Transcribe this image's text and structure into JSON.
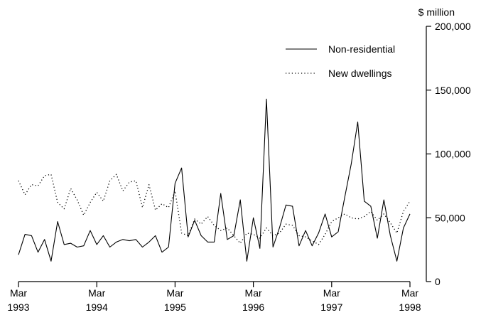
{
  "chart_data": {
    "type": "line",
    "ylabel": "$ million",
    "ylim": [
      0,
      200000
    ],
    "y_ticks": [
      {
        "value": 0,
        "label": "0"
      },
      {
        "value": 50000,
        "label": "50,000"
      },
      {
        "value": 100000,
        "label": "100,000"
      },
      {
        "value": 150000,
        "label": "150,000"
      },
      {
        "value": 200000,
        "label": "200,000"
      }
    ],
    "x_range": [
      "1993-03",
      "1998-03"
    ],
    "x_ticks": [
      {
        "month": "Mar",
        "year": "1993",
        "date": "1993-03"
      },
      {
        "month": "Mar",
        "year": "1994",
        "date": "1994-03"
      },
      {
        "month": "Mar",
        "year": "1995",
        "date": "1995-03"
      },
      {
        "month": "Mar",
        "year": "1996",
        "date": "1996-03"
      },
      {
        "month": "Mar",
        "year": "1997",
        "date": "1997-03"
      },
      {
        "month": "Mar",
        "year": "1998",
        "date": "1998-03"
      }
    ],
    "legend_position": "top-right",
    "grid": false,
    "x": [
      "1993-03",
      "1993-04",
      "1993-05",
      "1993-06",
      "1993-07",
      "1993-08",
      "1993-09",
      "1993-10",
      "1993-11",
      "1993-12",
      "1994-01",
      "1994-02",
      "1994-03",
      "1994-04",
      "1994-05",
      "1994-06",
      "1994-07",
      "1994-08",
      "1994-09",
      "1994-10",
      "1994-11",
      "1994-12",
      "1995-01",
      "1995-02",
      "1995-03",
      "1995-04",
      "1995-05",
      "1995-06",
      "1995-07",
      "1995-08",
      "1995-09",
      "1995-10",
      "1995-11",
      "1995-12",
      "1996-01",
      "1996-02",
      "1996-03",
      "1996-04",
      "1996-05",
      "1996-06",
      "1996-07",
      "1996-08",
      "1996-09",
      "1996-10",
      "1996-11",
      "1996-12",
      "1997-01",
      "1997-02",
      "1997-03",
      "1997-04",
      "1997-05",
      "1997-06",
      "1997-07",
      "1997-08",
      "1997-09",
      "1997-10",
      "1997-11",
      "1997-12",
      "1998-01",
      "1998-02",
      "1998-03"
    ],
    "series": [
      {
        "name": "Non-residential",
        "style": "solid",
        "values": [
          21000,
          37000,
          36000,
          23000,
          33000,
          16000,
          47000,
          29000,
          30000,
          27000,
          28000,
          40000,
          29000,
          36000,
          27000,
          31000,
          33000,
          32000,
          33000,
          27000,
          31000,
          36000,
          23000,
          27000,
          77000,
          89000,
          35000,
          48000,
          36000,
          31000,
          31000,
          69000,
          33000,
          36000,
          64000,
          16000,
          50000,
          26000,
          143000,
          27000,
          42000,
          60000,
          59000,
          28000,
          40000,
          28000,
          38000,
          53000,
          35000,
          39000,
          66000,
          92000,
          125000,
          63000,
          59000,
          34000,
          64000,
          36000,
          16000,
          42000,
          53000
        ]
      },
      {
        "name": "New dwellings",
        "style": "dotted",
        "values": [
          79000,
          68000,
          76000,
          75000,
          83000,
          84000,
          62000,
          57000,
          73000,
          64000,
          52000,
          62000,
          70000,
          63000,
          79000,
          84000,
          71000,
          78000,
          79000,
          58000,
          76000,
          56000,
          61000,
          58000,
          71000,
          38000,
          36000,
          49000,
          45000,
          51000,
          44000,
          40000,
          42000,
          36000,
          30000,
          38000,
          37000,
          34000,
          42000,
          36000,
          38000,
          45000,
          44000,
          36000,
          35000,
          32000,
          29000,
          37000,
          47000,
          50000,
          53000,
          50000,
          49000,
          51000,
          55000,
          48000,
          53000,
          46000,
          38000,
          55000,
          63000
        ]
      }
    ]
  }
}
